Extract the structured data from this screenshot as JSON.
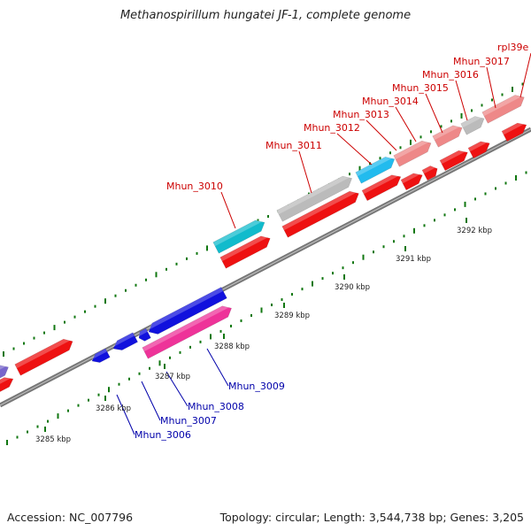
{
  "title": "Methanospirillum hungatei JF-1, complete genome",
  "accession": "Accession: NC_007796",
  "topology": "Topology: circular; Length: 3,544,738 bp; Genes: 3,205",
  "colors": {
    "forward_gene": "#ee1111",
    "forward_gene_light": "#ee8888",
    "forward_gene_label": "#cc0000",
    "reverse_gene": "#1111dd",
    "reverse_gene_label": "#0000aa",
    "magenta_gene": "#ee3399",
    "cyan_gene": "#11bbcc",
    "sky_gene": "#22bbee",
    "gray_gene": "#bbbbbb",
    "lavender_gene": "#7766cc",
    "backbone": "#888888",
    "tick": "#117711"
  },
  "ticks": [
    "3285 kbp",
    "3286 kbp",
    "3287 kbp",
    "3288 kbp",
    "3289 kbp",
    "3290 kbp",
    "3291 kbp",
    "3292 kbp"
  ],
  "forward_labels": [
    "Mhun_3010",
    "Mhun_3011",
    "Mhun_3012",
    "Mhun_3013",
    "Mhun_3014",
    "Mhun_3015",
    "Mhun_3016",
    "Mhun_3017",
    "rpl39e"
  ],
  "reverse_labels": [
    "Mhun_3006",
    "Mhun_3007",
    "Mhun_3008",
    "Mhun_3009"
  ]
}
